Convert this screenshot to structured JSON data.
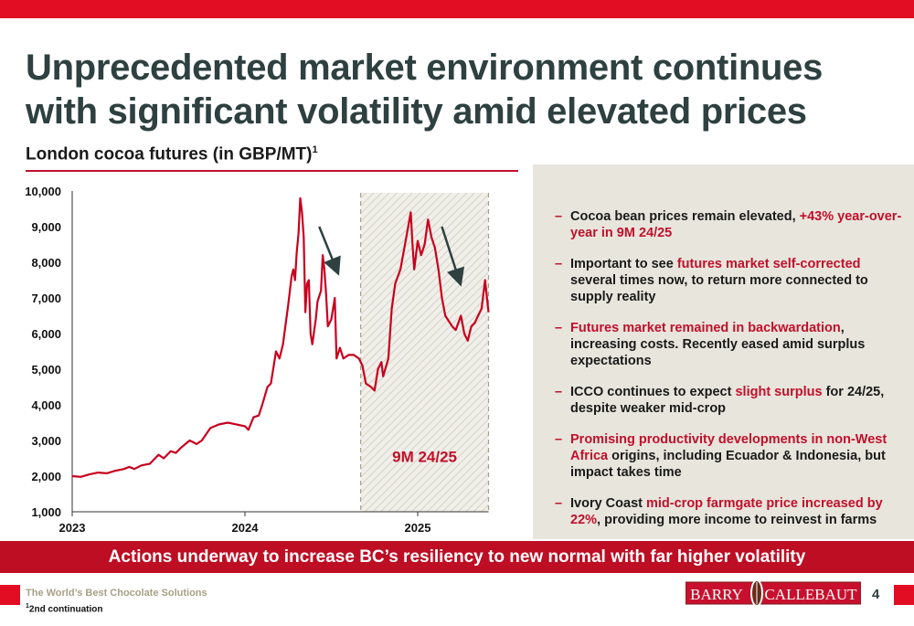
{
  "header": {
    "title": "Unprecedented market environment continues with significant volatility amid elevated prices",
    "subtitle": "London cocoa futures (in GBP/MT)",
    "subtitle_footnote_marker": "1"
  },
  "colors": {
    "brand_red": "#e30d23",
    "line_red": "#c8001e",
    "title_dark": "#2e4040",
    "panel_beige": "#e8e5dd"
  },
  "chart_data": {
    "type": "line",
    "title": "London cocoa futures (in GBP/MT)",
    "xlabel": "",
    "ylabel": "GBP/MT",
    "ylim": [
      1000,
      10000
    ],
    "xlim": [
      2023.0,
      2025.41
    ],
    "yticks": [
      "1,000",
      "2,000",
      "3,000",
      "4,000",
      "5,000",
      "6,000",
      "7,000",
      "8,000",
      "9,000",
      "10,000"
    ],
    "ytick_values": [
      1000,
      2000,
      3000,
      4000,
      5000,
      6000,
      7000,
      8000,
      9000,
      10000
    ],
    "xticks": [
      "2023",
      "2024",
      "2025"
    ],
    "xtick_values": [
      2023,
      2024,
      2025
    ],
    "grid": false,
    "shaded_region": {
      "label": "9M 24/25",
      "from": 2024.67,
      "to": 2025.41
    },
    "annotations": [
      {
        "type": "down-arrow",
        "from": [
          2024.43,
          9000
        ],
        "to": [
          2024.53,
          7800
        ]
      },
      {
        "type": "down-arrow",
        "from": [
          2025.14,
          9000
        ],
        "to": [
          2025.24,
          7500
        ]
      }
    ],
    "series": [
      {
        "name": "London cocoa futures",
        "x": [
          2023.0,
          2023.05,
          2023.1,
          2023.15,
          2023.2,
          2023.25,
          2023.3,
          2023.33,
          2023.36,
          2023.4,
          2023.45,
          2023.48,
          2023.5,
          2023.53,
          2023.57,
          2023.6,
          2023.63,
          2023.68,
          2023.7,
          2023.72,
          2023.75,
          2023.8,
          2023.85,
          2023.9,
          2023.95,
          2024.0,
          2024.02,
          2024.05,
          2024.08,
          2024.1,
          2024.13,
          2024.15,
          2024.18,
          2024.2,
          2024.22,
          2024.25,
          2024.27,
          2024.28,
          2024.29,
          2024.3,
          2024.31,
          2024.32,
          2024.33,
          2024.34,
          2024.35,
          2024.36,
          2024.37,
          2024.38,
          2024.39,
          2024.41,
          2024.42,
          2024.44,
          2024.45,
          2024.46,
          2024.47,
          2024.48,
          2024.5,
          2024.52,
          2024.53,
          2024.55,
          2024.57,
          2024.6,
          2024.63,
          2024.66,
          2024.68,
          2024.7,
          2024.73,
          2024.75,
          2024.77,
          2024.79,
          2024.8,
          2024.83,
          2024.85,
          2024.87,
          2024.9,
          2024.93,
          2024.96,
          2024.97,
          2024.98,
          2025.0,
          2025.02,
          2025.04,
          2025.06,
          2025.08,
          2025.1,
          2025.12,
          2025.14,
          2025.16,
          2025.2,
          2025.22,
          2025.25,
          2025.27,
          2025.29,
          2025.31,
          2025.33,
          2025.35,
          2025.37,
          2025.39,
          2025.41
        ],
        "values": [
          2000,
          1980,
          2050,
          2100,
          2080,
          2150,
          2200,
          2260,
          2200,
          2300,
          2350,
          2500,
          2600,
          2500,
          2700,
          2650,
          2800,
          3000,
          2950,
          2900,
          3000,
          3350,
          3450,
          3500,
          3450,
          3400,
          3300,
          3650,
          3700,
          4000,
          4500,
          4600,
          5500,
          5300,
          5700,
          6800,
          7600,
          7800,
          7500,
          8300,
          8800,
          9800,
          9400,
          8700,
          6600,
          7400,
          7500,
          6000,
          5700,
          6400,
          6900,
          7200,
          8200,
          7800,
          7100,
          6200,
          6400,
          7000,
          5300,
          5600,
          5300,
          5400,
          5400,
          5300,
          5100,
          4600,
          4500,
          4400,
          5000,
          5200,
          4800,
          5300,
          6700,
          7400,
          7800,
          8600,
          9400,
          8500,
          7800,
          8600,
          8200,
          8500,
          9200,
          8700,
          8400,
          7800,
          7000,
          6500,
          6200,
          6100,
          6500,
          6000,
          5800,
          6200,
          6300,
          6500,
          6700,
          7500,
          6600
        ]
      }
    ]
  },
  "bullets": [
    [
      {
        "t": "Cocoa bean prices remain elevated, ",
        "hl": false
      },
      {
        "t": "+43% year-over-year in 9M 24/25",
        "hl": true
      }
    ],
    [
      {
        "t": "Important to see ",
        "hl": false
      },
      {
        "t": "futures market self-corrected",
        "hl": true
      },
      {
        "t": " several times now, to return more connected to supply reality",
        "hl": false
      }
    ],
    [
      {
        "t": "Futures market remained in backwardation",
        "hl": true
      },
      {
        "t": ", increasing costs. Recently eased amid surplus expectations",
        "hl": false
      }
    ],
    [
      {
        "t": "ICCO continues to expect ",
        "hl": false
      },
      {
        "t": "slight surplus",
        "hl": true
      },
      {
        "t": " for 24/25, despite weaker mid-crop",
        "hl": false
      }
    ],
    [
      {
        "t": "Promising productivity developments in non-West Africa",
        "hl": true
      },
      {
        "t": " origins, including Ecuador & Indonesia, but impact takes time",
        "hl": false
      }
    ],
    [
      {
        "t": "Ivory Coast ",
        "hl": false
      },
      {
        "t": "mid-crop farmgate price increased by 22%",
        "hl": true
      },
      {
        "t": ", providing more income to reinvest in farms",
        "hl": false
      }
    ]
  ],
  "bullet_marker": "–",
  "banner": "Actions underway to increase BC’s resiliency to new normal with far higher volatility",
  "footer": {
    "tagline": "The World’s Best Chocolate Solutions",
    "footnote_marker": "1",
    "footnote": "2nd continuation",
    "logo_left": "BARRY",
    "logo_right": "CALLEBAUT",
    "page_number": "4"
  }
}
